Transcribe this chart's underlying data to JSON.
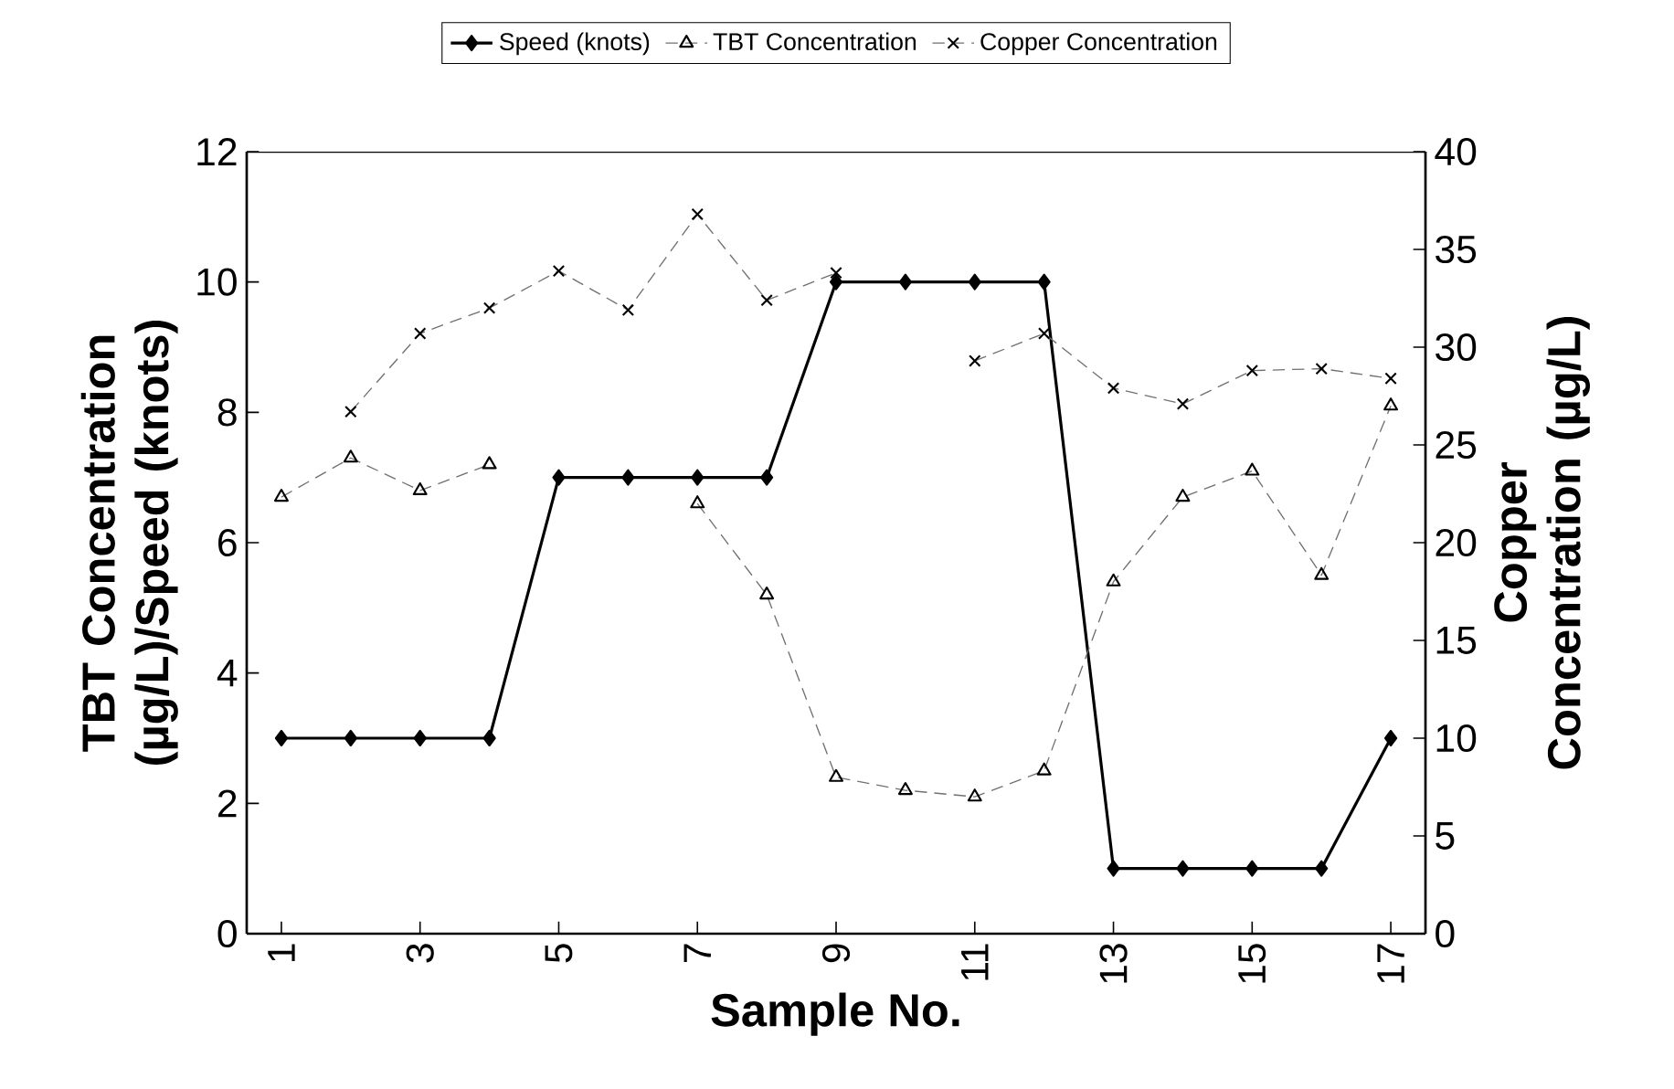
{
  "chart_data": {
    "type": "line",
    "xlabel": "Sample No.",
    "ylabel": "TBT Concentration (µg/L)/Speed (knots)",
    "y2label": "Copper Concentration (µg/L)",
    "categories": [
      "1",
      null,
      "3",
      null,
      "5",
      null,
      "7",
      null,
      "9",
      null,
      "11",
      null,
      "13",
      null,
      "15",
      null,
      "17"
    ],
    "series": [
      {
        "name": "Speed (knots)",
        "color": "#000000",
        "marker": "diamond",
        "line_style": "solid",
        "values": [
          3,
          3,
          3,
          3,
          7,
          7,
          7,
          7,
          10,
          10,
          10,
          10,
          1,
          1,
          1,
          1,
          3
        ]
      },
      {
        "name": "TBT Concentration",
        "color": "#707070",
        "marker": "triangle",
        "line_style": "dashed",
        "values": [
          6.7,
          7.3,
          6.8,
          7.2,
          null,
          null,
          6.6,
          5.2,
          2.4,
          2.2,
          2.1,
          2.5,
          5.4,
          6.7,
          7.1,
          5.5,
          8.1
        ]
      },
      {
        "name": "Copper Concentration",
        "color": "#707070",
        "marker": "cross",
        "line_style": "dashed",
        "axis": "y2",
        "values": [
          null,
          26.7,
          30.7,
          32.0,
          33.9,
          31.9,
          36.8,
          32.4,
          33.8,
          null,
          29.3,
          30.7,
          27.9,
          27.1,
          28.8,
          28.9,
          28.4
        ]
      }
    ],
    "ylim": [
      0,
      12
    ],
    "yticks": [
      0,
      2,
      4,
      6,
      8,
      10,
      12
    ],
    "y2lim": [
      0,
      40
    ],
    "y2ticks": [
      0,
      5,
      10,
      15,
      20,
      25,
      30,
      35,
      40
    ],
    "grid": false,
    "legend": "top"
  }
}
